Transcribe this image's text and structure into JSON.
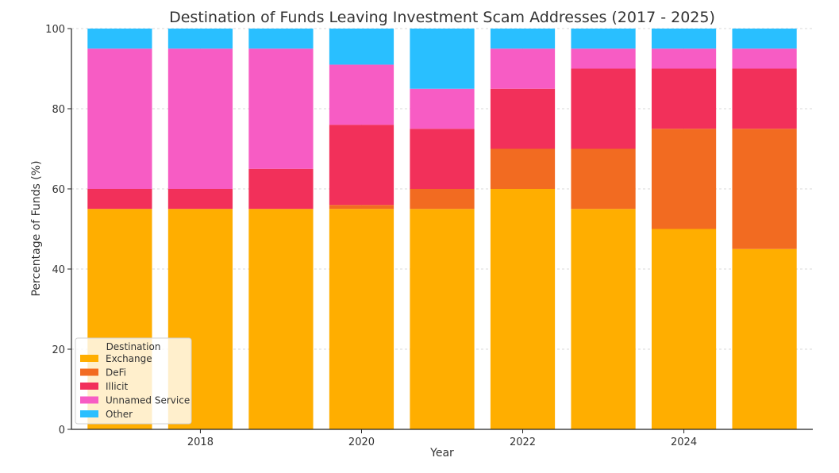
{
  "chart_data": {
    "type": "bar",
    "stacked": true,
    "title": "Destination of Funds Leaving Investment Scam Addresses (2017 - 2025)",
    "xlabel": "Year",
    "ylabel": "Percentage of Funds (%)",
    "ylim": [
      0,
      100
    ],
    "yticks": [
      0,
      20,
      40,
      60,
      80,
      100
    ],
    "xticks": [
      2018,
      2020,
      2022,
      2024
    ],
    "grid": true,
    "legend_title": "Destination",
    "legend_position": "lower-left",
    "categories": [
      2017,
      2018,
      2019,
      2020,
      2021,
      2022,
      2023,
      2024,
      2025
    ],
    "series": [
      {
        "name": "Exchange",
        "color": "#FFAE00",
        "values": [
          55,
          55,
          55,
          55,
          55,
          60,
          55,
          50,
          45
        ]
      },
      {
        "name": "DeFi",
        "color": "#F26B21",
        "values": [
          0,
          0,
          0,
          1,
          5,
          10,
          15,
          25,
          30
        ]
      },
      {
        "name": "Illicit",
        "color": "#F2305A",
        "values": [
          5,
          5,
          10,
          20,
          15,
          15,
          20,
          15,
          15
        ]
      },
      {
        "name": "Unnamed Service",
        "color": "#F75CC4",
        "values": [
          35,
          35,
          30,
          15,
          10,
          10,
          5,
          5,
          5
        ]
      },
      {
        "name": "Other",
        "color": "#29BFFF",
        "values": [
          5,
          5,
          5,
          9,
          15,
          5,
          5,
          5,
          5
        ]
      }
    ]
  }
}
